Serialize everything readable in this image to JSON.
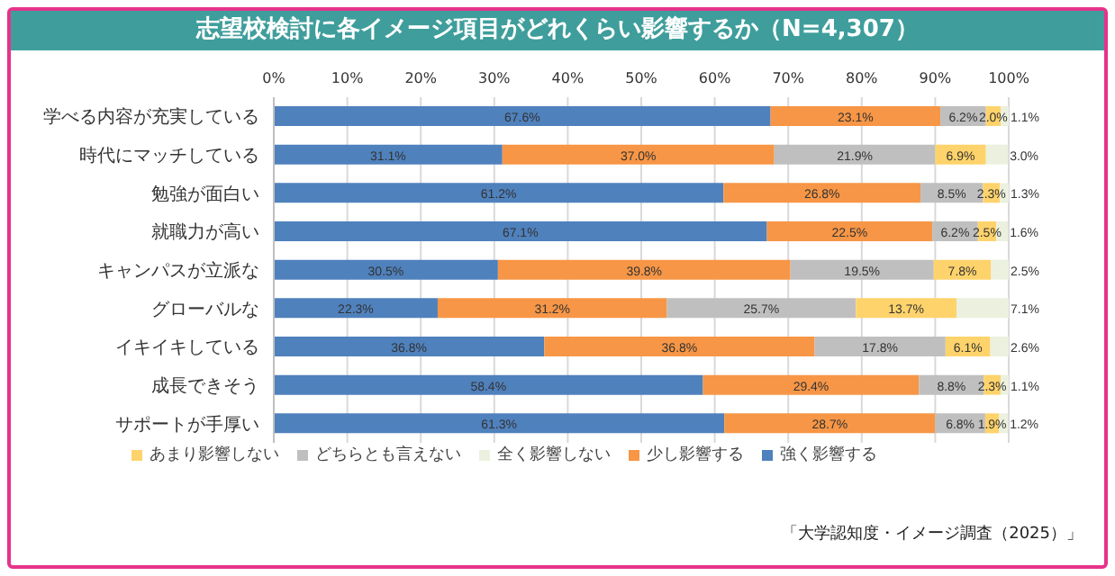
{
  "chart_data": {
    "type": "bar",
    "orientation": "horizontal",
    "stacked": true,
    "title": "志望校検討に各イメージ項目がどれくらい影響するか（N=4,307）",
    "categories": [
      "学べる内容が充実している",
      "時代にマッチしている",
      "勉強が面白い",
      "就職力が高い",
      "キャンパスが立派な",
      "グローバルな",
      "イキイキしている",
      "成長できそう",
      "サポートが手厚い"
    ],
    "series": [
      {
        "name": "強く影響する",
        "color": "#4f81bd",
        "values": [
          67.6,
          31.1,
          61.2,
          67.1,
          30.5,
          22.3,
          36.8,
          58.4,
          61.3
        ],
        "value_labels": [
          "67.6%",
          "31.1%",
          "61.2%",
          "67.1%",
          "30.5%",
          "22.3%",
          "36.8%",
          "58.4%",
          "61.3%"
        ]
      },
      {
        "name": "少し影響する",
        "color": "#f79646",
        "values": [
          23.1,
          37.0,
          26.8,
          22.5,
          39.8,
          31.2,
          36.8,
          29.4,
          28.7
        ],
        "value_labels": [
          "23.1%",
          "37.0%",
          "26.8%",
          "22.5%",
          "39.8%",
          "31.2%",
          "36.8%",
          "29.4%",
          "28.7%"
        ]
      },
      {
        "name": "どちらとも言えない",
        "color": "#bfbfbf",
        "values": [
          6.2,
          21.9,
          8.5,
          6.2,
          19.5,
          25.7,
          17.8,
          8.8,
          6.8
        ],
        "value_labels": [
          "6.2%",
          "21.9%",
          "8.5%",
          "6.2%",
          "19.5%",
          "25.7%",
          "17.8%",
          "8.8%",
          "6.8%"
        ]
      },
      {
        "name": "あまり影響しない",
        "color": "#ffd36b",
        "values": [
          2.0,
          6.9,
          2.3,
          2.5,
          7.8,
          13.7,
          6.1,
          2.3,
          1.9
        ],
        "value_labels": [
          "2.0%",
          "6.9%",
          "2.3%",
          "2.5%",
          "7.8%",
          "13.7%",
          "6.1%",
          "2.3%",
          "1.9%"
        ]
      },
      {
        "name": "全く影響しない",
        "color": "#ebf1de",
        "values": [
          1.1,
          3.0,
          1.3,
          1.6,
          2.5,
          7.1,
          2.6,
          1.1,
          1.2
        ],
        "value_labels": [
          "1.1%",
          "3.0%",
          "1.3%",
          "1.6%",
          "2.5%",
          "7.1%",
          "2.6%",
          "1.1%",
          "1.2%"
        ]
      }
    ],
    "xlim": [
      0,
      100
    ],
    "xticks": [
      {
        "value": 0,
        "label": "0%"
      },
      {
        "value": 10,
        "label": "10%"
      },
      {
        "value": 20,
        "label": "20%"
      },
      {
        "value": 30,
        "label": "30%"
      },
      {
        "value": 40,
        "label": "40%"
      },
      {
        "value": 50,
        "label": "50%"
      },
      {
        "value": 60,
        "label": "60%"
      },
      {
        "value": 70,
        "label": "70%"
      },
      {
        "value": 80,
        "label": "80%"
      },
      {
        "value": 90,
        "label": "90%"
      },
      {
        "value": 100,
        "label": "100%"
      }
    ],
    "grid": "x",
    "legend": "bottom",
    "annotations": [
      "「大学認知度・イメージ調査（2025）」"
    ]
  }
}
